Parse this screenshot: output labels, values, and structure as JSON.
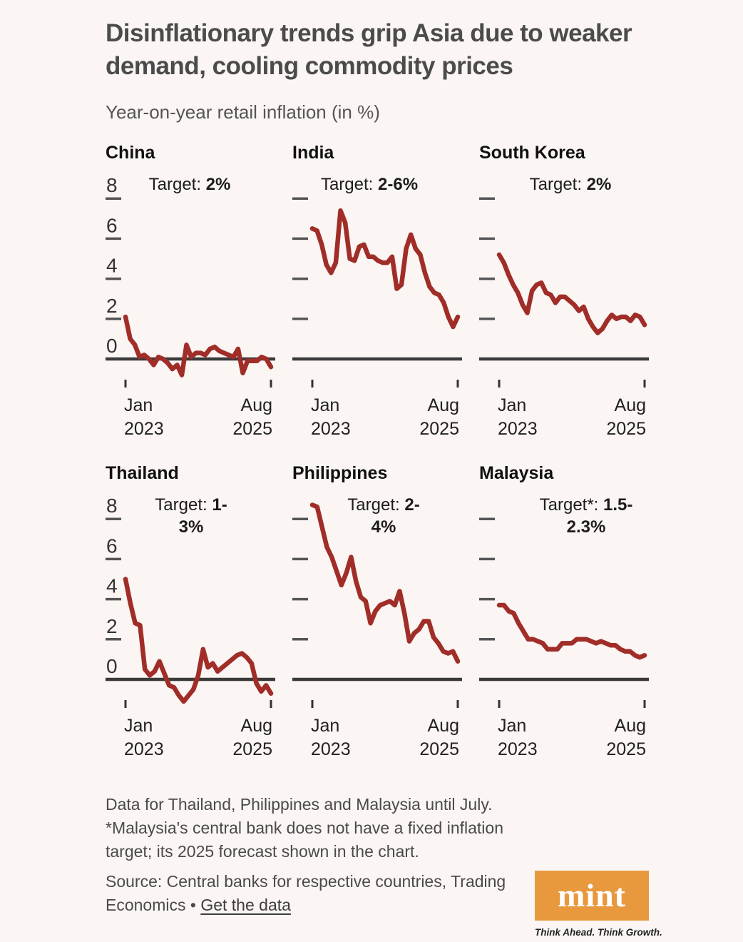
{
  "header": {
    "title": "Disinflationary trends grip Asia due to weaker demand, cooling commodity prices",
    "subtitle": "Year-on-year retail inflation (in %)"
  },
  "axis": {
    "start_month": "Jan",
    "start_year": "2023",
    "end_month": "Aug",
    "end_year": "2025",
    "y_ticks": [
      8,
      6,
      4,
      2,
      0
    ]
  },
  "chart_data": [
    {
      "type": "line",
      "country": "China",
      "target_label": "Target: 2%",
      "target_lines": [
        [
          "Target: ",
          "2%"
        ]
      ],
      "show_y_labels": true,
      "x_start": "Jan 2023",
      "x_end": "Aug 2025",
      "ylabel": "YoY retail inflation (%)",
      "y_ticks": [
        8,
        6,
        4,
        2,
        0
      ],
      "ylim": [
        -1.5,
        9
      ],
      "grid": false,
      "values": [
        2.1,
        1.0,
        0.7,
        0.1,
        0.2,
        0.0,
        -0.3,
        0.1,
        0.0,
        -0.2,
        -0.5,
        -0.3,
        -0.8,
        0.7,
        0.1,
        0.3,
        0.3,
        0.2,
        0.5,
        0.6,
        0.4,
        0.3,
        0.2,
        0.1,
        0.5,
        -0.7,
        -0.1,
        -0.1,
        -0.1,
        0.1,
        0.0,
        -0.4
      ]
    },
    {
      "type": "line",
      "country": "India",
      "target_label": "Target: 2-6%",
      "target_lines": [
        [
          "Target: ",
          "2-6%"
        ]
      ],
      "show_y_labels": false,
      "x_start": "Jan 2023",
      "x_end": "Aug 2025",
      "ylabel": "YoY retail inflation (%)",
      "y_ticks": [
        8,
        6,
        4,
        2,
        0
      ],
      "ylim": [
        -1.5,
        9
      ],
      "grid": false,
      "values": [
        6.5,
        6.4,
        5.7,
        4.7,
        4.3,
        4.8,
        7.4,
        6.8,
        5.0,
        4.9,
        5.6,
        5.7,
        5.1,
        5.1,
        4.9,
        4.8,
        4.8,
        5.1,
        3.5,
        3.7,
        5.5,
        6.2,
        5.5,
        5.2,
        4.3,
        3.6,
        3.3,
        3.2,
        2.8,
        2.1,
        1.6,
        2.1
      ]
    },
    {
      "type": "line",
      "country": "South Korea",
      "target_label": "Target: 2%",
      "target_lines": [
        [
          "Target: ",
          "2%"
        ]
      ],
      "show_y_labels": false,
      "x_start": "Jan 2023",
      "x_end": "Aug 2025",
      "ylabel": "YoY retail inflation (%)",
      "y_ticks": [
        8,
        6,
        4,
        2,
        0
      ],
      "ylim": [
        -1.5,
        9
      ],
      "grid": false,
      "values": [
        5.2,
        4.8,
        4.2,
        3.7,
        3.3,
        2.7,
        2.3,
        3.4,
        3.7,
        3.8,
        3.3,
        3.2,
        2.8,
        3.1,
        3.1,
        2.9,
        2.7,
        2.4,
        2.6,
        2.0,
        1.6,
        1.3,
        1.5,
        1.9,
        2.2,
        2.0,
        2.1,
        2.1,
        1.9,
        2.2,
        2.1,
        1.7
      ]
    },
    {
      "type": "line",
      "country": "Thailand",
      "target_label": "Target: 1-3%",
      "target_lines": [
        [
          "Target: ",
          "1-"
        ],
        [
          "",
          "3%"
        ]
      ],
      "show_y_labels": true,
      "x_start": "Jan 2023",
      "x_end": "Aug 2025",
      "ylabel": "YoY retail inflation (%)",
      "y_ticks": [
        8,
        6,
        4,
        2,
        0
      ],
      "ylim": [
        -1.5,
        9
      ],
      "grid": false,
      "values": [
        5.0,
        3.8,
        2.8,
        2.7,
        0.5,
        0.2,
        0.4,
        0.9,
        0.3,
        -0.3,
        -0.4,
        -0.8,
        -1.1,
        -0.8,
        -0.5,
        0.2,
        1.5,
        0.6,
        0.8,
        0.4,
        0.6,
        0.8,
        1.0,
        1.2,
        1.3,
        1.1,
        0.8,
        -0.2,
        -0.6,
        -0.3,
        -0.7
      ]
    },
    {
      "type": "line",
      "country": "Philippines",
      "target_label": "Target: 2-4%",
      "target_lines": [
        [
          "Target: ",
          "2-"
        ],
        [
          "",
          "4%"
        ]
      ],
      "show_y_labels": false,
      "x_start": "Jan 2023",
      "x_end": "Aug 2025",
      "ylabel": "YoY retail inflation (%)",
      "y_ticks": [
        8,
        6,
        4,
        2,
        0
      ],
      "ylim": [
        -1.5,
        9
      ],
      "grid": false,
      "values": [
        8.7,
        8.6,
        7.6,
        6.6,
        6.1,
        5.4,
        4.7,
        5.3,
        6.1,
        4.9,
        4.1,
        3.9,
        2.8,
        3.4,
        3.7,
        3.8,
        3.9,
        3.7,
        4.4,
        3.3,
        1.9,
        2.3,
        2.5,
        2.9,
        2.9,
        2.1,
        1.8,
        1.4,
        1.3,
        1.4,
        0.9
      ]
    },
    {
      "type": "line",
      "country": "Malaysia",
      "target_label": "Target*: 1.5-2.3%",
      "target_lines": [
        [
          "Target*: ",
          "1.5-"
        ],
        [
          "",
          "2.3%"
        ]
      ],
      "show_y_labels": false,
      "x_start": "Jan 2023",
      "x_end": "Aug 2025",
      "ylabel": "YoY retail inflation (%)",
      "y_ticks": [
        8,
        6,
        4,
        2,
        0
      ],
      "ylim": [
        -1.5,
        9
      ],
      "grid": false,
      "values": [
        3.7,
        3.7,
        3.4,
        3.3,
        2.8,
        2.4,
        2.0,
        2.0,
        1.9,
        1.8,
        1.5,
        1.5,
        1.5,
        1.8,
        1.8,
        1.8,
        2.0,
        2.0,
        2.0,
        1.9,
        1.8,
        1.9,
        1.8,
        1.7,
        1.7,
        1.5,
        1.4,
        1.4,
        1.2,
        1.1,
        1.2
      ]
    }
  ],
  "notes": {
    "line1": "Data for Thailand, Philippines and Malaysia until July.",
    "line2": "*Malaysia's central bank does not have a fixed inflation target; its 2025 forecast shown in the chart."
  },
  "source": {
    "prefix": "Source: Central banks for respective countries, Trading Economics",
    "separator": "•",
    "link": "Get the data"
  },
  "logo": {
    "text": "mint",
    "tagline": "Think Ahead. Think Growth."
  },
  "colors": {
    "background": "#fbf5f3",
    "line": "#a02d28",
    "axis": "#3a3a3a",
    "tick": "#555555",
    "text": "#1c1c1c",
    "title": "#4b4b4b",
    "subtitle": "#555555",
    "footnote": "#4a4a4a",
    "logo_orange": "#e8993e"
  }
}
